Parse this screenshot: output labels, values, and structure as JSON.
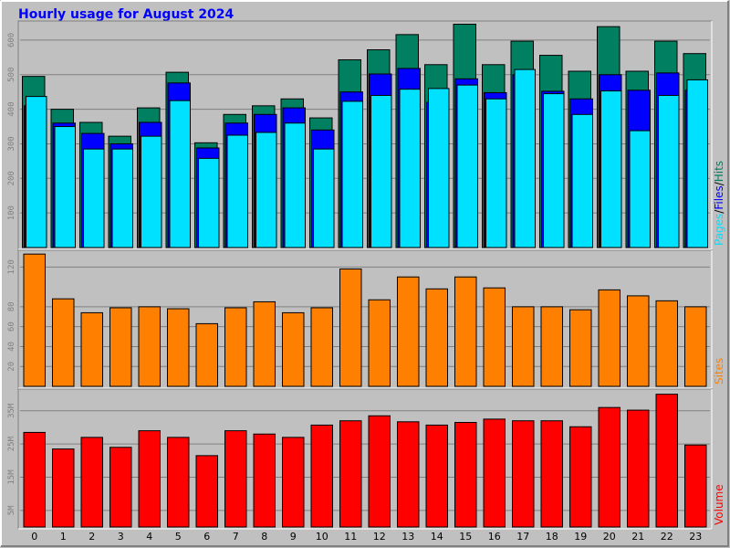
{
  "title": "Hourly usage for August 2024",
  "chart_data": {
    "type": "bar",
    "categories": [
      "0",
      "1",
      "2",
      "3",
      "4",
      "5",
      "6",
      "7",
      "8",
      "9",
      "10",
      "11",
      "12",
      "13",
      "14",
      "15",
      "16",
      "17",
      "18",
      "19",
      "20",
      "21",
      "22",
      "23"
    ],
    "panels": [
      {
        "id": "hits",
        "ylim": [
          0,
          650
        ],
        "ticks": [
          100,
          200,
          300,
          400,
          500,
          600
        ],
        "tick_labels": [
          "100",
          "200",
          "300",
          "400",
          "500",
          "600"
        ],
        "legend": [
          {
            "text": "Pages",
            "color": "#00e0ff"
          },
          {
            "text": "/",
            "color": "#000000"
          },
          {
            "text": "Files",
            "color": "#0000ff"
          },
          {
            "text": "/",
            "color": "#000000"
          },
          {
            "text": "Hits",
            "color": "#008060"
          }
        ],
        "series": [
          {
            "name": "Hits",
            "color": "#008060",
            "values": [
              495,
              400,
              362,
              322,
              404,
              507,
              303,
              385,
              410,
              430,
              375,
              543,
              572,
              616,
              529,
              646,
              529,
              597,
              556,
              510,
              639,
              510,
              597,
              561
            ]
          },
          {
            "name": "Files",
            "color": "#0000ff",
            "values": [
              410,
              360,
              330,
              300,
              362,
              476,
              288,
              360,
              385,
              404,
              340,
              450,
              502,
              518,
              420,
              488,
              448,
              500,
              452,
              430,
              500,
              455,
              505,
              455
            ]
          },
          {
            "name": "Pages",
            "color": "#00e0ff",
            "values": [
              437,
              350,
              285,
              285,
              322,
              425,
              258,
              325,
              333,
              360,
              285,
              423,
              440,
              458,
              460,
              470,
              430,
              515,
              445,
              385,
              453,
              338,
              440,
              485
            ]
          }
        ]
      },
      {
        "id": "sites",
        "ylim": [
          0,
          135
        ],
        "ticks": [
          20,
          40,
          60,
          80,
          120
        ],
        "tick_labels": [
          "20",
          "40",
          "60",
          "80",
          "120"
        ],
        "legend": [
          {
            "text": "Sites",
            "color": "#ff8000"
          }
        ],
        "series": [
          {
            "name": "Sites",
            "color": "#ff8000",
            "values": [
              133,
              88,
              74,
              79,
              80,
              78,
              63,
              79,
              85,
              74,
              79,
              118,
              87,
              110,
              98,
              110,
              99,
              80,
              80,
              77,
              97,
              91,
              86,
              80
            ]
          }
        ]
      },
      {
        "id": "volume",
        "ylim": [
          0,
          41
        ],
        "ticks": [
          5,
          15,
          25,
          35
        ],
        "tick_labels": [
          "5M",
          "15M",
          "25M",
          "35M"
        ],
        "legend": [
          {
            "text": "Volume",
            "color": "#ff0000"
          }
        ],
        "series": [
          {
            "name": "Volume",
            "color": "#ff0000",
            "values": [
              28.5,
              23.5,
              27.0,
              24.0,
              29.0,
              27.0,
              21.5,
              29.0,
              28.0,
              27.0,
              30.7,
              32.0,
              33.5,
              31.7,
              30.7,
              31.5,
              32.5,
              32.0,
              32.0,
              30.2,
              36.0,
              35.2,
              40.0,
              24.7
            ]
          }
        ]
      }
    ]
  }
}
